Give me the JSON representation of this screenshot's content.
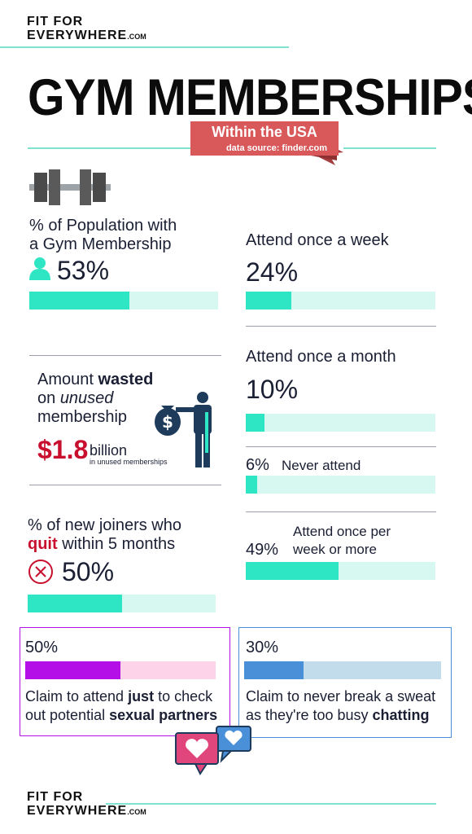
{
  "brand": {
    "top": "FIT FOR",
    "bottom": "EVERYWHERE",
    "suffix": ".COM"
  },
  "header": {
    "title": "GYM MEMBERSHIPS",
    "ribbon_title": "Within the USA",
    "ribbon_source": "data source: finder.com"
  },
  "population": {
    "label_line1": "% of Population with",
    "label_line2": "a Gym Membership",
    "value": "53%",
    "fraction": 0.53
  },
  "weekly": {
    "label": "Attend once a week",
    "value": "24%",
    "fraction": 0.24
  },
  "monthly": {
    "label": "Attend once a month",
    "value": "10%",
    "fraction": 0.1
  },
  "never": {
    "value": "6%",
    "label": "Never attend",
    "fraction": 0.06
  },
  "weekly_plus": {
    "value": "49%",
    "label_line1": "Attend once per",
    "label_line2": "week or more",
    "fraction": 0.49
  },
  "wasted": {
    "line1_pre": "Amount ",
    "line1_bold": "wasted",
    "line2_pre": "on ",
    "line2_italic": "unused",
    "line3": "membership",
    "amount": "$1.8",
    "unit": "billion",
    "sub": "in unused memberships"
  },
  "quit": {
    "line1": "% of new joiners who",
    "line2_bold": "quit",
    "line2_rest": " within 5 months",
    "value": "50%",
    "fraction": 0.5
  },
  "sexual": {
    "value": "50%",
    "fraction": 0.5,
    "line1_pre": "Claim to attend ",
    "line1_bold": "just",
    "line1_post": " to check",
    "line2_pre": "out potential ",
    "line2_bold": "sexual partners"
  },
  "sweat": {
    "value": "30%",
    "fraction": 0.3,
    "line1": "Claim to never break a sweat",
    "line2_pre": "as they're too busy ",
    "line2_bold": "chatting"
  },
  "colors": {
    "accent": "#2ee6c4",
    "accent_light": "#d7f8f0",
    "red": "#c8102e",
    "ribbon": "#d9585a",
    "purple": "#b40fe6",
    "pink_light": "#fdd3ea",
    "blue": "#4a90d9",
    "blue_light": "#c2dceb",
    "navy": "#1f3b5c"
  }
}
